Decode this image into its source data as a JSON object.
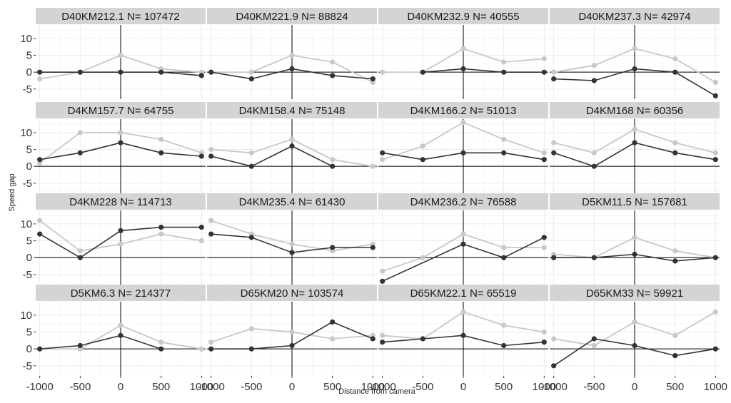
{
  "chart_data": {
    "type": "line",
    "xlabel": "Distance from camera",
    "ylabel": "Speed gap",
    "x": [
      -1000,
      -500,
      0,
      500,
      1000
    ],
    "x_ticks": [
      "-1000",
      "-500",
      "0",
      "500",
      "1000"
    ],
    "y_ticks": [
      "-5",
      "0",
      "5",
      "10"
    ],
    "xlim": [
      -1050,
      1050
    ],
    "ylim": [
      -8,
      14
    ],
    "grid": true,
    "colors": {
      "dark": "#333333",
      "light": "#c8c8c8",
      "strip": "#d4d4d4",
      "grid": "#ebebeb",
      "ref": "#000000"
    },
    "panels": [
      {
        "title": "D40KM212.1 N= 107472",
        "dark": [
          0,
          0,
          0,
          0,
          -1
        ],
        "light": [
          -2,
          0,
          5,
          1,
          0
        ]
      },
      {
        "title": "D40KM221.9 N= 88824",
        "dark": [
          0,
          -2,
          1,
          -1,
          -2
        ],
        "light": [
          0,
          0,
          5,
          3,
          -3
        ]
      },
      {
        "title": "D40KM232.9 N= 40555",
        "dark": [
          null,
          0,
          1,
          0,
          0
        ],
        "light": [
          0,
          0,
          7,
          3,
          4
        ]
      },
      {
        "title": "D40KM237.3 N= 42974",
        "dark": [
          -2,
          -2.5,
          1,
          0,
          -7
        ],
        "light": [
          0,
          2,
          7,
          4,
          -3
        ]
      },
      {
        "title": "D4KM157.7 N= 64755",
        "dark": [
          2,
          4,
          7,
          4,
          3
        ],
        "light": [
          1,
          10,
          10,
          8,
          4
        ]
      },
      {
        "title": "D4KM158.4 N= 75148",
        "dark": [
          3,
          0,
          6,
          0,
          null
        ],
        "light": [
          5,
          4,
          8,
          2,
          0
        ]
      },
      {
        "title": "D4KM166.2 N= 51013",
        "dark": [
          4,
          2,
          4,
          4,
          2
        ],
        "light": [
          2,
          6,
          13,
          8,
          4
        ]
      },
      {
        "title": "D4KM168 N= 60356",
        "dark": [
          4,
          0,
          7,
          4,
          2
        ],
        "light": [
          7,
          4,
          11,
          7,
          4
        ]
      },
      {
        "title": "D4KM228 N= 114713",
        "dark": [
          7,
          0,
          8,
          9,
          9
        ],
        "light": [
          11,
          2,
          4,
          7,
          5
        ]
      },
      {
        "title": "D4KM235.4 N= 61430",
        "dark": [
          7,
          6,
          1.5,
          3,
          3
        ],
        "light": [
          11,
          7,
          4,
          2,
          4
        ]
      },
      {
        "title": "D4KM236.2 N= 76588",
        "dark": [
          -7,
          null,
          4,
          0,
          6
        ],
        "light": [
          -4,
          0,
          7,
          3,
          3
        ]
      },
      {
        "title": "D5KM11.5 N= 157681",
        "dark": [
          0,
          0,
          1,
          -1,
          0
        ],
        "light": [
          1,
          0,
          6,
          2,
          0
        ]
      },
      {
        "title": "D5KM6.3 N= 214377",
        "dark": [
          0,
          1,
          4,
          0,
          null
        ],
        "light": [
          0,
          0,
          7,
          2,
          0
        ]
      },
      {
        "title": "D65KM20 N= 103574",
        "dark": [
          0,
          0,
          1,
          8,
          3
        ],
        "light": [
          2,
          6,
          5,
          3,
          4
        ]
      },
      {
        "title": "D65KM22.1 N= 65519",
        "dark": [
          2,
          3,
          4,
          1,
          2
        ],
        "light": [
          4,
          3,
          11,
          7,
          5
        ]
      },
      {
        "title": "D65KM33 N= 59921",
        "dark": [
          -5,
          3,
          1,
          -2,
          0
        ],
        "light": [
          3,
          1,
          8,
          4,
          11
        ]
      }
    ]
  }
}
